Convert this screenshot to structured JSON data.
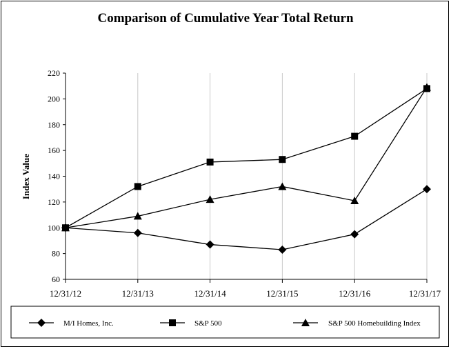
{
  "chart_data": {
    "type": "line",
    "title": "Comparison of Cumulative Year Total Return",
    "xlabel": "",
    "ylabel": "Index Value",
    "categories": [
      "12/31/12",
      "12/31/13",
      "12/31/14",
      "12/31/15",
      "12/31/16",
      "12/31/17"
    ],
    "y_ticks": [
      "60",
      "80",
      "100",
      "120",
      "140",
      "160",
      "180",
      "200",
      "220"
    ],
    "ylim": [
      60,
      220
    ],
    "grid": "vertical",
    "legend_position": "bottom",
    "series": [
      {
        "name": "M/I Homes, Inc.",
        "marker": "diamond",
        "values": [
          100,
          96,
          87,
          83,
          95,
          130
        ]
      },
      {
        "name": "S&P 500",
        "marker": "square",
        "values": [
          100,
          132,
          151,
          153,
          171,
          208
        ]
      },
      {
        "name": "S&P 500 Homebuilding Index",
        "marker": "triangle",
        "values": [
          100,
          109,
          122,
          132,
          121,
          209
        ]
      }
    ]
  }
}
